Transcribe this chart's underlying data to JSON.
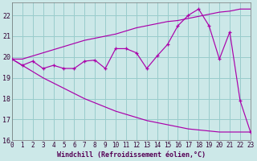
{
  "xlabel": "Windchill (Refroidissement éolien,°C)",
  "bg_color": "#cce8e8",
  "line_color": "#aa00aa",
  "grid_color": "#99cccc",
  "x_values": [
    0,
    1,
    2,
    3,
    4,
    5,
    6,
    7,
    8,
    9,
    10,
    11,
    12,
    13,
    14,
    15,
    16,
    17,
    18,
    19,
    20,
    21,
    22,
    23
  ],
  "y_main": [
    19.9,
    19.6,
    19.8,
    19.45,
    19.6,
    19.45,
    19.45,
    19.8,
    19.85,
    19.45,
    20.4,
    20.4,
    20.2,
    19.45,
    20.05,
    20.6,
    21.5,
    22.0,
    22.3,
    21.5,
    19.9,
    21.2,
    17.9,
    16.4
  ],
  "y_upper": [
    19.9,
    19.9,
    20.05,
    20.2,
    20.35,
    20.5,
    20.65,
    20.8,
    20.9,
    21.0,
    21.1,
    21.25,
    21.4,
    21.5,
    21.6,
    21.7,
    21.75,
    21.85,
    21.95,
    22.05,
    22.15,
    22.2,
    22.3,
    22.3
  ],
  "y_lower": [
    19.9,
    19.6,
    19.3,
    19.0,
    18.75,
    18.5,
    18.25,
    18.0,
    17.8,
    17.6,
    17.4,
    17.25,
    17.1,
    16.95,
    16.85,
    16.75,
    16.65,
    16.55,
    16.5,
    16.45,
    16.4,
    16.4,
    16.4,
    16.4
  ],
  "xlim": [
    0,
    23
  ],
  "ylim": [
    16,
    22.6
  ],
  "yticks": [
    16,
    17,
    18,
    19,
    20,
    21,
    22
  ],
  "xticks": [
    0,
    1,
    2,
    3,
    4,
    5,
    6,
    7,
    8,
    9,
    10,
    11,
    12,
    13,
    14,
    15,
    16,
    17,
    18,
    19,
    20,
    21,
    22,
    23
  ],
  "xlabel_color": "#550055",
  "tick_fontsize": 5.5,
  "xlabel_fontsize": 6.0
}
